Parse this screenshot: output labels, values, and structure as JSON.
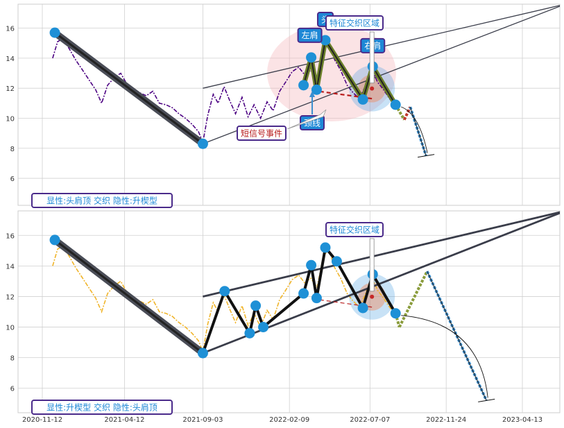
{
  "chart_data": [
    {
      "type": "line",
      "panel": "top",
      "title": "",
      "xlabel": "",
      "ylabel": "",
      "ylim": [
        4.2,
        17.6
      ],
      "y_ticks": [
        6,
        8,
        10,
        12,
        14,
        16
      ],
      "grid": true,
      "price_color": "#4b0082",
      "price_series": {
        "dates": [
          "2020-12-01",
          "2020-12-10",
          "2020-12-20",
          "2021-01-01",
          "2021-01-12",
          "2021-01-25",
          "2021-02-05",
          "2021-02-18",
          "2021-03-01",
          "2021-03-12",
          "2021-03-24",
          "2021-04-05",
          "2021-04-16",
          "2021-04-28",
          "2021-05-10",
          "2021-05-22",
          "2021-06-03",
          "2021-06-15",
          "2021-06-27",
          "2021-07-09",
          "2021-07-21",
          "2021-08-02",
          "2021-08-14",
          "2021-08-26",
          "2021-09-03",
          "2021-09-12",
          "2021-09-22",
          "2021-10-01",
          "2021-10-12",
          "2021-10-22",
          "2021-11-02",
          "2021-11-14",
          "2021-11-25",
          "2021-12-06",
          "2021-12-18",
          "2021-12-30",
          "2022-01-10",
          "2022-01-22",
          "2022-02-02",
          "2022-02-14",
          "2022-02-26",
          "2022-03-09",
          "2022-03-20",
          "2022-04-01",
          "2022-04-12",
          "2022-04-22",
          "2022-05-03",
          "2022-05-14",
          "2022-05-26",
          "2022-06-06",
          "2022-06-18",
          "2022-06-29",
          "2022-07-10",
          "2022-07-21",
          "2022-08-01",
          "2022-08-12",
          "2022-08-22"
        ],
        "values": [
          14.0,
          15.1,
          15.3,
          14.6,
          13.9,
          13.2,
          12.6,
          11.9,
          11.0,
          12.2,
          12.7,
          13.0,
          12.3,
          12.0,
          11.7,
          11.5,
          11.8,
          11.0,
          10.9,
          10.7,
          10.3,
          10.0,
          9.6,
          9.1,
          8.4,
          10.2,
          11.6,
          11.0,
          12.1,
          11.2,
          10.3,
          11.4,
          10.1,
          10.9,
          10.0,
          11.1,
          10.5,
          11.8,
          12.4,
          13.1,
          13.4,
          12.9,
          13.2,
          12.6,
          14.6,
          15.1,
          13.9,
          13.2,
          12.2,
          11.7,
          11.3,
          12.2,
          13.3,
          12.4,
          11.9,
          11.3,
          10.8
        ]
      },
      "pattern_points": [
        {
          "date": "2020-12-05",
          "value": 15.7
        },
        {
          "date": "2021-09-03",
          "value": 8.3
        },
        {
          "date": "2022-03-07",
          "value": 12.2
        },
        {
          "date": "2022-03-21",
          "value": 14.05
        },
        {
          "date": "2022-03-31",
          "value": 11.9
        },
        {
          "date": "2022-04-16",
          "value": 15.2
        },
        {
          "date": "2022-06-24",
          "value": 11.25
        },
        {
          "date": "2022-07-12",
          "value": 13.45
        },
        {
          "date": "2022-08-23",
          "value": 10.9
        }
      ],
      "trend_lines": [
        {
          "from": {
            "date": "2021-09-03",
            "value": 8.3
          },
          "to": {
            "date": "2023-07-01",
            "value": 17.6
          }
        },
        {
          "from": {
            "date": "2021-09-03",
            "value": 12.0
          },
          "to": {
            "date": "2023-07-01",
            "value": 17.6
          }
        }
      ],
      "neckline": {
        "from": {
          "date": "2022-03-24",
          "value": 11.85
        },
        "to": {
          "date": "2022-07-12",
          "value": 11.3
        }
      },
      "projection": [
        {
          "date": "2022-08-23",
          "value": 10.9
        },
        {
          "date": "2022-09-08",
          "value": 9.9
        },
        {
          "date": "2022-09-19",
          "value": 10.75
        },
        {
          "date": "2022-10-18",
          "value": 7.5
        }
      ],
      "labels": {
        "head": "头",
        "left_shoulder": "左肩",
        "right_shoulder": "右肩",
        "feature_zone": "特征交织区域",
        "neckline": "颈线",
        "short_signal": "短信号事件",
        "pattern_note": "显性:头肩顶 交织 隐性:升楔型"
      }
    },
    {
      "type": "line",
      "panel": "bottom",
      "title": "",
      "xlabel": "",
      "ylabel": "",
      "ylim": [
        4.4,
        17.6
      ],
      "y_ticks": [
        6,
        8,
        10,
        12,
        14,
        16
      ],
      "x_ticks": [
        "2020-11-12",
        "2021-04-12",
        "2021-09-03",
        "2022-02-09",
        "2022-07-07",
        "2022-11-24",
        "2023-04-13"
      ],
      "grid": true,
      "price_color": "#f0b429",
      "price_series": {
        "dates": [
          "2020-12-01",
          "2020-12-10",
          "2020-12-20",
          "2021-01-01",
          "2021-01-12",
          "2021-01-25",
          "2021-02-05",
          "2021-02-18",
          "2021-03-01",
          "2021-03-12",
          "2021-03-24",
          "2021-04-05",
          "2021-04-16",
          "2021-04-28",
          "2021-05-10",
          "2021-05-22",
          "2021-06-03",
          "2021-06-15",
          "2021-06-27",
          "2021-07-09",
          "2021-07-21",
          "2021-08-02",
          "2021-08-14",
          "2021-08-26",
          "2021-09-03",
          "2021-09-12",
          "2021-09-22",
          "2021-10-01",
          "2021-10-12",
          "2021-10-22",
          "2021-11-02",
          "2021-11-14",
          "2021-11-25",
          "2021-12-06",
          "2021-12-18",
          "2021-12-30",
          "2022-01-10",
          "2022-01-22",
          "2022-02-02",
          "2022-02-14",
          "2022-02-26",
          "2022-03-09",
          "2022-03-20",
          "2022-04-01",
          "2022-04-12",
          "2022-04-22",
          "2022-05-03",
          "2022-05-14",
          "2022-05-26",
          "2022-06-06",
          "2022-06-18",
          "2022-06-29",
          "2022-07-10",
          "2022-07-21",
          "2022-08-01",
          "2022-08-12",
          "2022-08-22"
        ],
        "values": [
          14.0,
          15.1,
          15.3,
          14.6,
          13.9,
          13.2,
          12.6,
          11.9,
          11.0,
          12.2,
          12.7,
          13.0,
          12.3,
          12.0,
          11.7,
          11.5,
          11.8,
          11.0,
          10.9,
          10.7,
          10.3,
          10.0,
          9.6,
          9.1,
          8.4,
          10.2,
          11.6,
          11.0,
          12.1,
          11.2,
          10.3,
          11.4,
          10.1,
          10.9,
          10.0,
          11.1,
          10.5,
          11.8,
          12.4,
          13.1,
          13.4,
          12.9,
          13.2,
          12.6,
          14.6,
          15.1,
          13.9,
          13.2,
          12.2,
          11.7,
          11.3,
          12.2,
          13.3,
          12.4,
          11.9,
          11.3,
          10.8
        ]
      },
      "pattern_points": [
        {
          "date": "2020-12-05",
          "value": 15.7
        },
        {
          "date": "2021-09-03",
          "value": 8.3
        },
        {
          "date": "2021-10-13",
          "value": 12.35
        },
        {
          "date": "2021-11-28",
          "value": 9.6
        },
        {
          "date": "2021-12-09",
          "value": 11.4
        },
        {
          "date": "2021-12-23",
          "value": 10.0
        },
        {
          "date": "2022-03-07",
          "value": 12.2
        },
        {
          "date": "2022-03-21",
          "value": 14.05
        },
        {
          "date": "2022-03-31",
          "value": 11.9
        },
        {
          "date": "2022-04-16",
          "value": 15.2
        },
        {
          "date": "2022-05-07",
          "value": 14.3
        },
        {
          "date": "2022-06-24",
          "value": 11.25
        },
        {
          "date": "2022-07-12",
          "value": 13.45
        },
        {
          "date": "2022-08-23",
          "value": 10.9
        }
      ],
      "trend_lines": [
        {
          "from": {
            "date": "2021-09-03",
            "value": 8.3
          },
          "to": {
            "date": "2023-07-01",
            "value": 17.6
          }
        },
        {
          "from": {
            "date": "2021-09-03",
            "value": 12.0
          },
          "to": {
            "date": "2023-07-01",
            "value": 17.6
          }
        }
      ],
      "neckline": {
        "from": {
          "date": "2022-03-24",
          "value": 11.85
        },
        "to": {
          "date": "2022-07-12",
          "value": 11.3
        }
      },
      "projection": [
        {
          "date": "2022-08-23",
          "value": 10.9
        },
        {
          "date": "2022-08-30",
          "value": 10.0
        },
        {
          "date": "2022-10-20",
          "value": 13.65
        },
        {
          "date": "2023-02-06",
          "value": 5.2
        }
      ],
      "labels": {
        "feature_zone": "特征交织区域",
        "pattern_note": "显性:升楔型 交织 隐性:头肩顶"
      }
    }
  ]
}
